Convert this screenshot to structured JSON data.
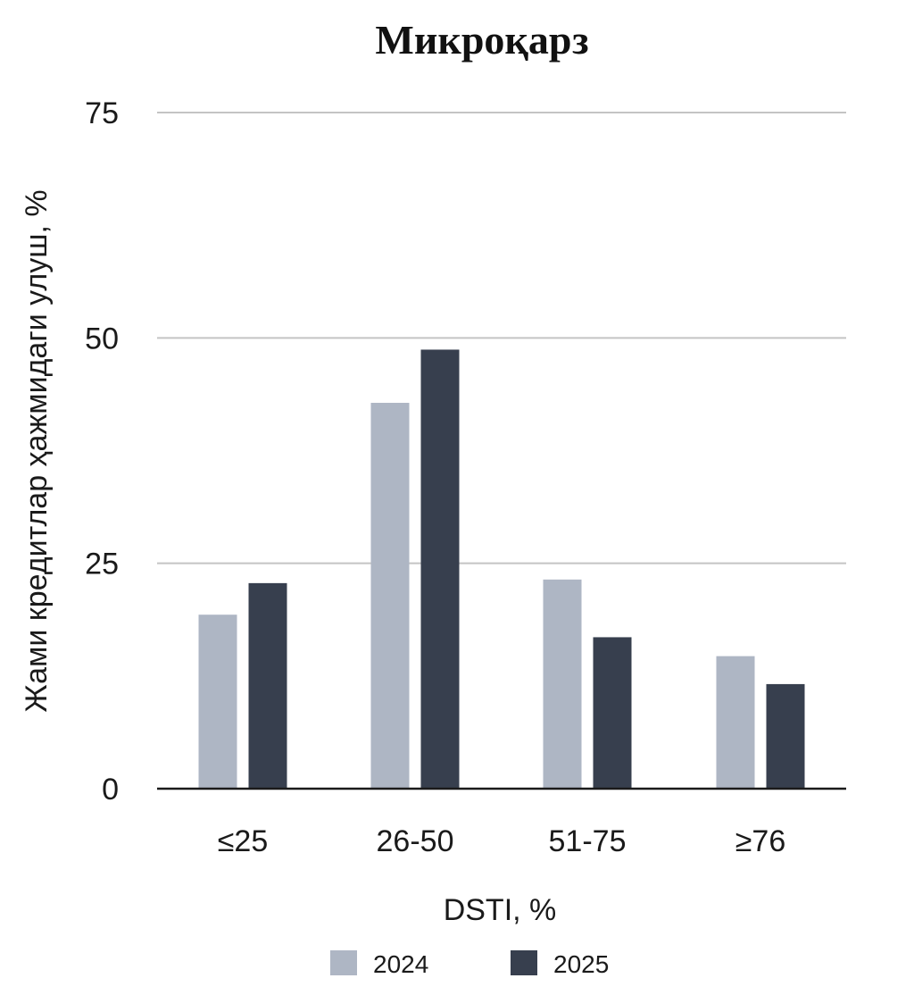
{
  "chart_data": {
    "type": "bar",
    "title": "Микроқарз",
    "xlabel": "DSTI, %",
    "ylabel": "Жами кредитлар ҳажмидаги улуш, %",
    "categories": [
      "≤25",
      "26-50",
      "51-75",
      "≥76"
    ],
    "series": [
      {
        "name": "2024",
        "color": "#aeb6c4",
        "values": [
          19.3,
          42.8,
          23.2,
          14.7
        ]
      },
      {
        "name": "2025",
        "color": "#373f4e",
        "values": [
          22.8,
          48.7,
          16.8,
          11.6
        ]
      }
    ],
    "yticks": [
      0,
      25,
      50,
      75
    ],
    "ylim": [
      0,
      75
    ],
    "grid": true,
    "legend_position": "bottom"
  }
}
